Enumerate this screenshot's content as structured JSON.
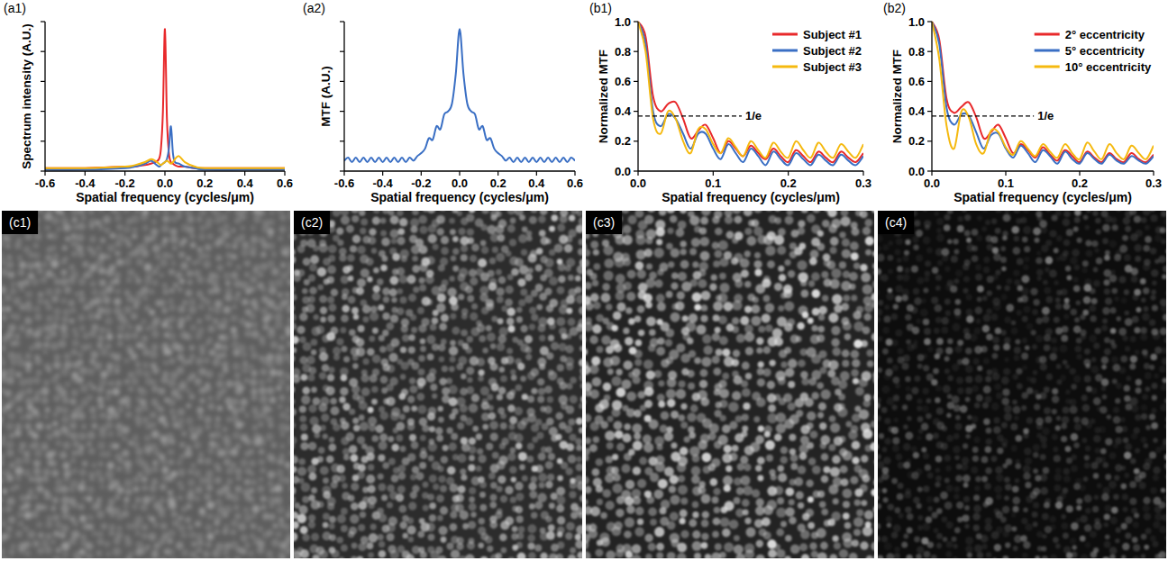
{
  "chart_data": [
    {
      "type": "line",
      "title": "(a1)",
      "x_label": "Spatial frequency (cycles/μm)",
      "y_label": "Spectrum intensity (A.U.)",
      "x": [
        -0.6,
        -0.4,
        -0.2,
        -0.15,
        -0.1,
        -0.07,
        -0.05,
        -0.03,
        -0.02,
        -0.01,
        0,
        0.01,
        0.02,
        0.03,
        0.04,
        0.05,
        0.07,
        0.1,
        0.15,
        0.2,
        0.4,
        0.6
      ],
      "series": [
        {
          "color": "#e8292b",
          "values": [
            0.02,
            0.02,
            0.03,
            0.03,
            0.04,
            0.05,
            0.06,
            0.08,
            0.15,
            0.4,
            0.95,
            0.35,
            0.12,
            0.06,
            0.05,
            0.04,
            0.03,
            0.03,
            0.02,
            0.02,
            0.02,
            0.02
          ]
        },
        {
          "color": "#3a6fc4",
          "values": [
            0.01,
            0.01,
            0.02,
            0.03,
            0.05,
            0.07,
            0.05,
            0.03,
            0.04,
            0.05,
            0.06,
            0.08,
            0.15,
            0.3,
            0.12,
            0.06,
            0.05,
            0.03,
            0.02,
            0.01,
            0.01,
            0.01
          ]
        },
        {
          "color": "#f5b90f",
          "values": [
            0.02,
            0.02,
            0.03,
            0.04,
            0.06,
            0.08,
            0.07,
            0.05,
            0.04,
            0.05,
            0.06,
            0.07,
            0.06,
            0.05,
            0.06,
            0.08,
            0.1,
            0.06,
            0.03,
            0.02,
            0.02,
            0.02
          ]
        }
      ],
      "xlim": [
        -0.6,
        0.6
      ],
      "xticks": [
        -0.6,
        -0.4,
        -0.2,
        {
          "value": 0,
          "label": "0.0"
        },
        0.2,
        0.4,
        0.6
      ],
      "ylim": [
        0,
        1
      ],
      "yticks": [
        0,
        0.2,
        0.4,
        0.6,
        0.8,
        1
      ],
      "tick_labels": "x",
      "grid": false
    },
    {
      "type": "line",
      "title": "(a2)",
      "x_label": "Spatial frequency (cycles/μm)",
      "y_label": "MTF (A.U.)",
      "x": [
        -0.6,
        -0.58,
        -0.56,
        -0.54,
        -0.52,
        -0.5,
        -0.48,
        -0.46,
        -0.44,
        -0.42,
        -0.4,
        -0.38,
        -0.36,
        -0.34,
        -0.32,
        -0.3,
        -0.28,
        -0.26,
        -0.24,
        -0.22,
        -0.2,
        -0.18,
        -0.16,
        -0.14,
        -0.12,
        -0.1,
        -0.08,
        -0.06,
        -0.04,
        -0.02,
        0,
        0.02,
        0.04,
        0.06,
        0.08,
        0.1,
        0.12,
        0.14,
        0.16,
        0.18,
        0.2,
        0.22,
        0.24,
        0.26,
        0.28,
        0.3,
        0.32,
        0.34,
        0.36,
        0.38,
        0.4,
        0.42,
        0.44,
        0.46,
        0.48,
        0.5,
        0.52,
        0.54,
        0.56,
        0.58,
        0.6
      ],
      "series": [
        {
          "color": "#3a6fc4",
          "values": [
            0.07,
            0.09,
            0.06,
            0.09,
            0.06,
            0.09,
            0.06,
            0.09,
            0.06,
            0.09,
            0.06,
            0.09,
            0.06,
            0.09,
            0.06,
            0.09,
            0.06,
            0.09,
            0.07,
            0.1,
            0.12,
            0.15,
            0.22,
            0.21,
            0.3,
            0.28,
            0.38,
            0.4,
            0.45,
            0.65,
            0.95,
            0.65,
            0.45,
            0.4,
            0.38,
            0.28,
            0.3,
            0.21,
            0.22,
            0.15,
            0.12,
            0.1,
            0.07,
            0.09,
            0.06,
            0.09,
            0.06,
            0.09,
            0.06,
            0.09,
            0.06,
            0.09,
            0.06,
            0.09,
            0.06,
            0.09,
            0.06,
            0.09,
            0.06,
            0.09,
            0.07
          ]
        }
      ],
      "xlim": [
        -0.6,
        0.6
      ],
      "xticks": [
        -0.6,
        -0.4,
        -0.2,
        {
          "value": 0,
          "label": "0.0"
        },
        0.2,
        0.4,
        0.6
      ],
      "ylim": [
        0,
        1
      ],
      "yticks": [
        0,
        0.2,
        0.4,
        0.6,
        0.8,
        1
      ],
      "tick_labels": "x",
      "grid": false
    },
    {
      "type": "line",
      "title": "(b1)",
      "x_label": "Spatial frequency (cycles/μm)",
      "y_label": "Normalized MTF",
      "x": [
        0,
        0.01,
        0.02,
        0.03,
        0.04,
        0.05,
        0.06,
        0.07,
        0.08,
        0.09,
        0.1,
        0.11,
        0.12,
        0.13,
        0.14,
        0.15,
        0.16,
        0.17,
        0.18,
        0.19,
        0.2,
        0.21,
        0.22,
        0.23,
        0.24,
        0.25,
        0.26,
        0.27,
        0.28,
        0.29,
        0.3
      ],
      "series": [
        {
          "name": "Subject #1",
          "color": "#e8292b",
          "values": [
            1,
            0.9,
            0.5,
            0.4,
            0.45,
            0.46,
            0.35,
            0.22,
            0.27,
            0.31,
            0.22,
            0.12,
            0.2,
            0.15,
            0.1,
            0.17,
            0.12,
            0.08,
            0.15,
            0.1,
            0.06,
            0.14,
            0.1,
            0.06,
            0.13,
            0.09,
            0.06,
            0.13,
            0.09,
            0.06,
            0.12
          ]
        },
        {
          "name": "Subject #2",
          "color": "#3a6fc4",
          "values": [
            1,
            0.85,
            0.4,
            0.3,
            0.38,
            0.35,
            0.25,
            0.15,
            0.25,
            0.25,
            0.15,
            0.08,
            0.18,
            0.12,
            0.06,
            0.15,
            0.1,
            0.04,
            0.13,
            0.08,
            0.04,
            0.12,
            0.08,
            0.04,
            0.11,
            0.07,
            0.04,
            0.11,
            0.07,
            0.04,
            0.1
          ]
        },
        {
          "name": "Subject #3",
          "color": "#f5b90f",
          "values": [
            1,
            0.8,
            0.35,
            0.25,
            0.4,
            0.35,
            0.2,
            0.12,
            0.28,
            0.28,
            0.18,
            0.12,
            0.22,
            0.16,
            0.1,
            0.2,
            0.14,
            0.09,
            0.19,
            0.13,
            0.09,
            0.2,
            0.14,
            0.09,
            0.19,
            0.13,
            0.09,
            0.18,
            0.13,
            0.09,
            0.18
          ]
        }
      ],
      "annotations": [
        {
          "text": "1/e",
          "y": 0.368
        }
      ],
      "xlim": [
        0,
        0.3
      ],
      "xticks": [
        {
          "value": 0,
          "label": "0.0"
        },
        0.1,
        0.2,
        0.3
      ],
      "ylim": [
        0,
        1
      ],
      "yticks": [
        {
          "value": 0,
          "label": "0.0"
        },
        0.2,
        0.4,
        0.6,
        0.8,
        {
          "value": 1,
          "label": "1.0"
        }
      ],
      "legend": "top-right",
      "grid": false
    },
    {
      "type": "line",
      "title": "(b2)",
      "x_label": "Spatial frequency (cycles/μm)",
      "y_label": "Normalized MTF",
      "x": [
        0,
        0.01,
        0.02,
        0.03,
        0.04,
        0.05,
        0.06,
        0.07,
        0.08,
        0.09,
        0.1,
        0.11,
        0.12,
        0.13,
        0.14,
        0.15,
        0.16,
        0.17,
        0.18,
        0.19,
        0.2,
        0.21,
        0.22,
        0.23,
        0.24,
        0.25,
        0.26,
        0.27,
        0.28,
        0.29,
        0.3
      ],
      "series": [
        {
          "name": "2° eccentricity",
          "color": "#e8292b",
          "values": [
            1,
            0.88,
            0.48,
            0.39,
            0.43,
            0.46,
            0.36,
            0.22,
            0.26,
            0.31,
            0.22,
            0.12,
            0.18,
            0.14,
            0.09,
            0.16,
            0.11,
            0.07,
            0.14,
            0.1,
            0.06,
            0.13,
            0.09,
            0.06,
            0.12,
            0.08,
            0.06,
            0.12,
            0.08,
            0.06,
            0.11
          ]
        },
        {
          "name": "5° eccentricity",
          "color": "#3a6fc4",
          "values": [
            1,
            0.85,
            0.42,
            0.31,
            0.38,
            0.37,
            0.26,
            0.15,
            0.24,
            0.25,
            0.15,
            0.09,
            0.17,
            0.12,
            0.06,
            0.14,
            0.1,
            0.05,
            0.13,
            0.08,
            0.05,
            0.12,
            0.08,
            0.05,
            0.11,
            0.07,
            0.05,
            0.1,
            0.07,
            0.05,
            0.1
          ]
        },
        {
          "name": "10° eccentricity",
          "color": "#f5b90f",
          "values": [
            1,
            0.75,
            0.3,
            0.15,
            0.4,
            0.36,
            0.18,
            0.12,
            0.27,
            0.26,
            0.16,
            0.11,
            0.2,
            0.15,
            0.1,
            0.18,
            0.13,
            0.09,
            0.18,
            0.12,
            0.08,
            0.19,
            0.13,
            0.08,
            0.18,
            0.12,
            0.08,
            0.17,
            0.12,
            0.08,
            0.17
          ]
        }
      ],
      "annotations": [
        {
          "text": "1/e",
          "y": 0.368
        }
      ],
      "xlim": [
        0,
        0.3
      ],
      "xticks": [
        {
          "value": 0,
          "label": "0.0"
        },
        0.1,
        0.2,
        0.3
      ],
      "ylim": [
        0,
        1
      ],
      "yticks": [
        {
          "value": 0,
          "label": "0.0"
        },
        0.2,
        0.4,
        0.6,
        0.8,
        {
          "value": 1,
          "label": "1.0"
        }
      ],
      "legend": "top-right",
      "grid": false
    }
  ],
  "images": [
    {
      "label": "(c1)"
    },
    {
      "label": "(c2)"
    },
    {
      "label": "(c3)"
    },
    {
      "label": "(c4)"
    }
  ]
}
